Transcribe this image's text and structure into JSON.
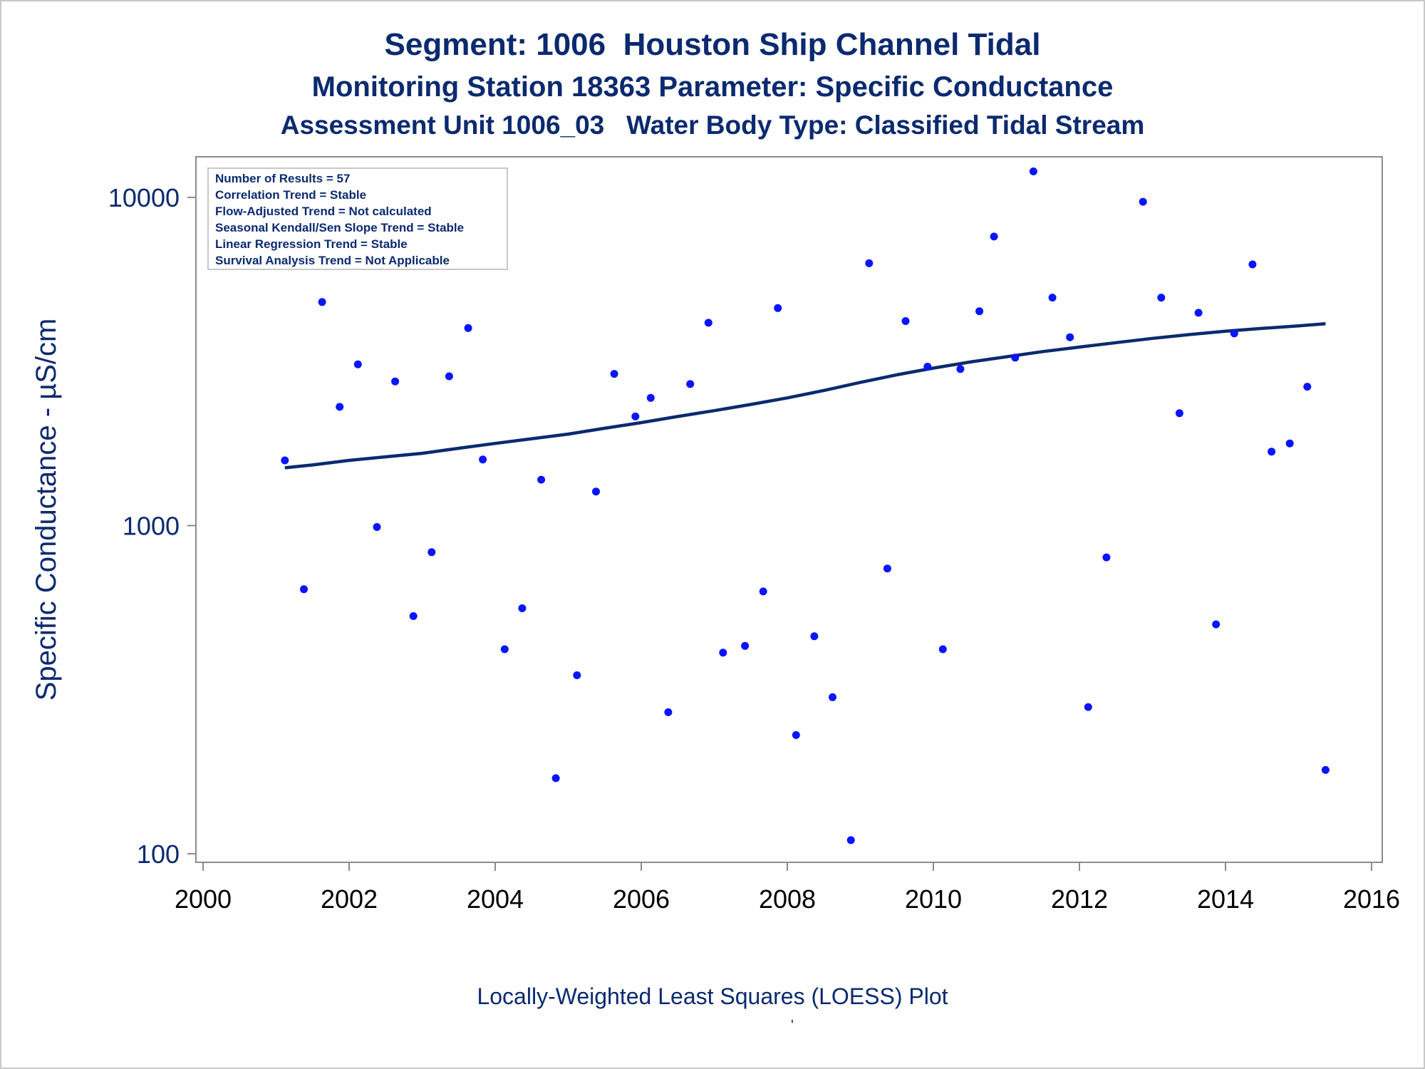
{
  "titles": {
    "line1": "Segment: 1006  Houston Ship Channel Tidal",
    "line2": "Monitoring Station 18363 Parameter: Specific Conductance",
    "line3": "Assessment Unit 1006_03   Water Body Type: Classified Tidal Stream"
  },
  "footnote": "Locally-Weighted Least Squares (LOESS) Plot",
  "footnote_mark": "'",
  "stats_box": [
    "Number of Results = 57",
    "Correlation Trend = Stable",
    "Flow-Adjusted Trend = Not calculated",
    "Seasonal Kendall/Sen Slope Trend = Stable",
    "Linear Regression Trend = Stable",
    "Survival Analysis Trend = Not Applicable"
  ],
  "colors": {
    "text": "#0b2a6f",
    "points": "#0a14ff",
    "loess_line": "#0b2a6f",
    "axis": "#8c8c8c"
  },
  "chart_data": {
    "type": "scatter",
    "xlabel": "",
    "ylabel": "Specific Conductance -  µS/cm",
    "xlim": [
      2000,
      2016
    ],
    "ylim": [
      100,
      12000
    ],
    "yscale": "log",
    "xticks": [
      2000,
      2002,
      2004,
      2006,
      2008,
      2010,
      2012,
      2014,
      2016
    ],
    "yticks": [
      100,
      1000,
      10000
    ],
    "grid": false,
    "points": [
      [
        2001.12,
        1580
      ],
      [
        2001.38,
        640
      ],
      [
        2001.63,
        4800
      ],
      [
        2001.87,
        2300
      ],
      [
        2002.12,
        3100
      ],
      [
        2002.38,
        990
      ],
      [
        2002.63,
        2750
      ],
      [
        2002.88,
        530
      ],
      [
        2003.13,
        830
      ],
      [
        2003.37,
        2850
      ],
      [
        2003.63,
        4000
      ],
      [
        2003.83,
        1590
      ],
      [
        2004.13,
        420
      ],
      [
        2004.37,
        560
      ],
      [
        2004.63,
        1380
      ],
      [
        2004.83,
        170
      ],
      [
        2005.12,
        350
      ],
      [
        2005.38,
        1270
      ],
      [
        2005.63,
        2900
      ],
      [
        2005.92,
        2150
      ],
      [
        2006.13,
        2450
      ],
      [
        2006.37,
        270
      ],
      [
        2006.67,
        2700
      ],
      [
        2006.92,
        4150
      ],
      [
        2007.12,
        410
      ],
      [
        2007.42,
        430
      ],
      [
        2007.67,
        630
      ],
      [
        2007.87,
        4600
      ],
      [
        2008.12,
        230
      ],
      [
        2008.37,
        460
      ],
      [
        2008.62,
        300
      ],
      [
        2008.87,
        110
      ],
      [
        2009.12,
        6300
      ],
      [
        2009.37,
        740
      ],
      [
        2009.62,
        4200
      ],
      [
        2009.92,
        3050
      ],
      [
        2010.13,
        420
      ],
      [
        2010.37,
        3000
      ],
      [
        2010.63,
        4500
      ],
      [
        2010.83,
        7600
      ],
      [
        2011.12,
        3250
      ],
      [
        2011.37,
        12000
      ],
      [
        2011.63,
        4950
      ],
      [
        2011.87,
        3750
      ],
      [
        2012.12,
        280
      ],
      [
        2012.37,
        800
      ],
      [
        2012.87,
        9700
      ],
      [
        2013.12,
        4950
      ],
      [
        2013.37,
        2200
      ],
      [
        2013.63,
        4450
      ],
      [
        2013.87,
        500
      ],
      [
        2014.12,
        3850
      ],
      [
        2014.37,
        6250
      ],
      [
        2014.63,
        1680
      ],
      [
        2014.88,
        1780
      ],
      [
        2015.12,
        2650
      ],
      [
        2015.37,
        180
      ]
    ],
    "loess": [
      [
        2001.12,
        1500
      ],
      [
        2001.5,
        1530
      ],
      [
        2002.0,
        1580
      ],
      [
        2002.5,
        1620
      ],
      [
        2003.0,
        1660
      ],
      [
        2003.5,
        1720
      ],
      [
        2004.0,
        1780
      ],
      [
        2004.5,
        1840
      ],
      [
        2005.0,
        1900
      ],
      [
        2005.5,
        1980
      ],
      [
        2006.0,
        2060
      ],
      [
        2006.5,
        2150
      ],
      [
        2007.0,
        2240
      ],
      [
        2007.5,
        2340
      ],
      [
        2008.0,
        2450
      ],
      [
        2008.5,
        2580
      ],
      [
        2009.0,
        2730
      ],
      [
        2009.5,
        2880
      ],
      [
        2010.0,
        3020
      ],
      [
        2010.5,
        3150
      ],
      [
        2011.0,
        3270
      ],
      [
        2011.5,
        3390
      ],
      [
        2012.0,
        3500
      ],
      [
        2012.5,
        3610
      ],
      [
        2013.0,
        3720
      ],
      [
        2013.5,
        3820
      ],
      [
        2014.0,
        3910
      ],
      [
        2014.5,
        3990
      ],
      [
        2015.0,
        4060
      ],
      [
        2015.37,
        4120
      ]
    ]
  }
}
